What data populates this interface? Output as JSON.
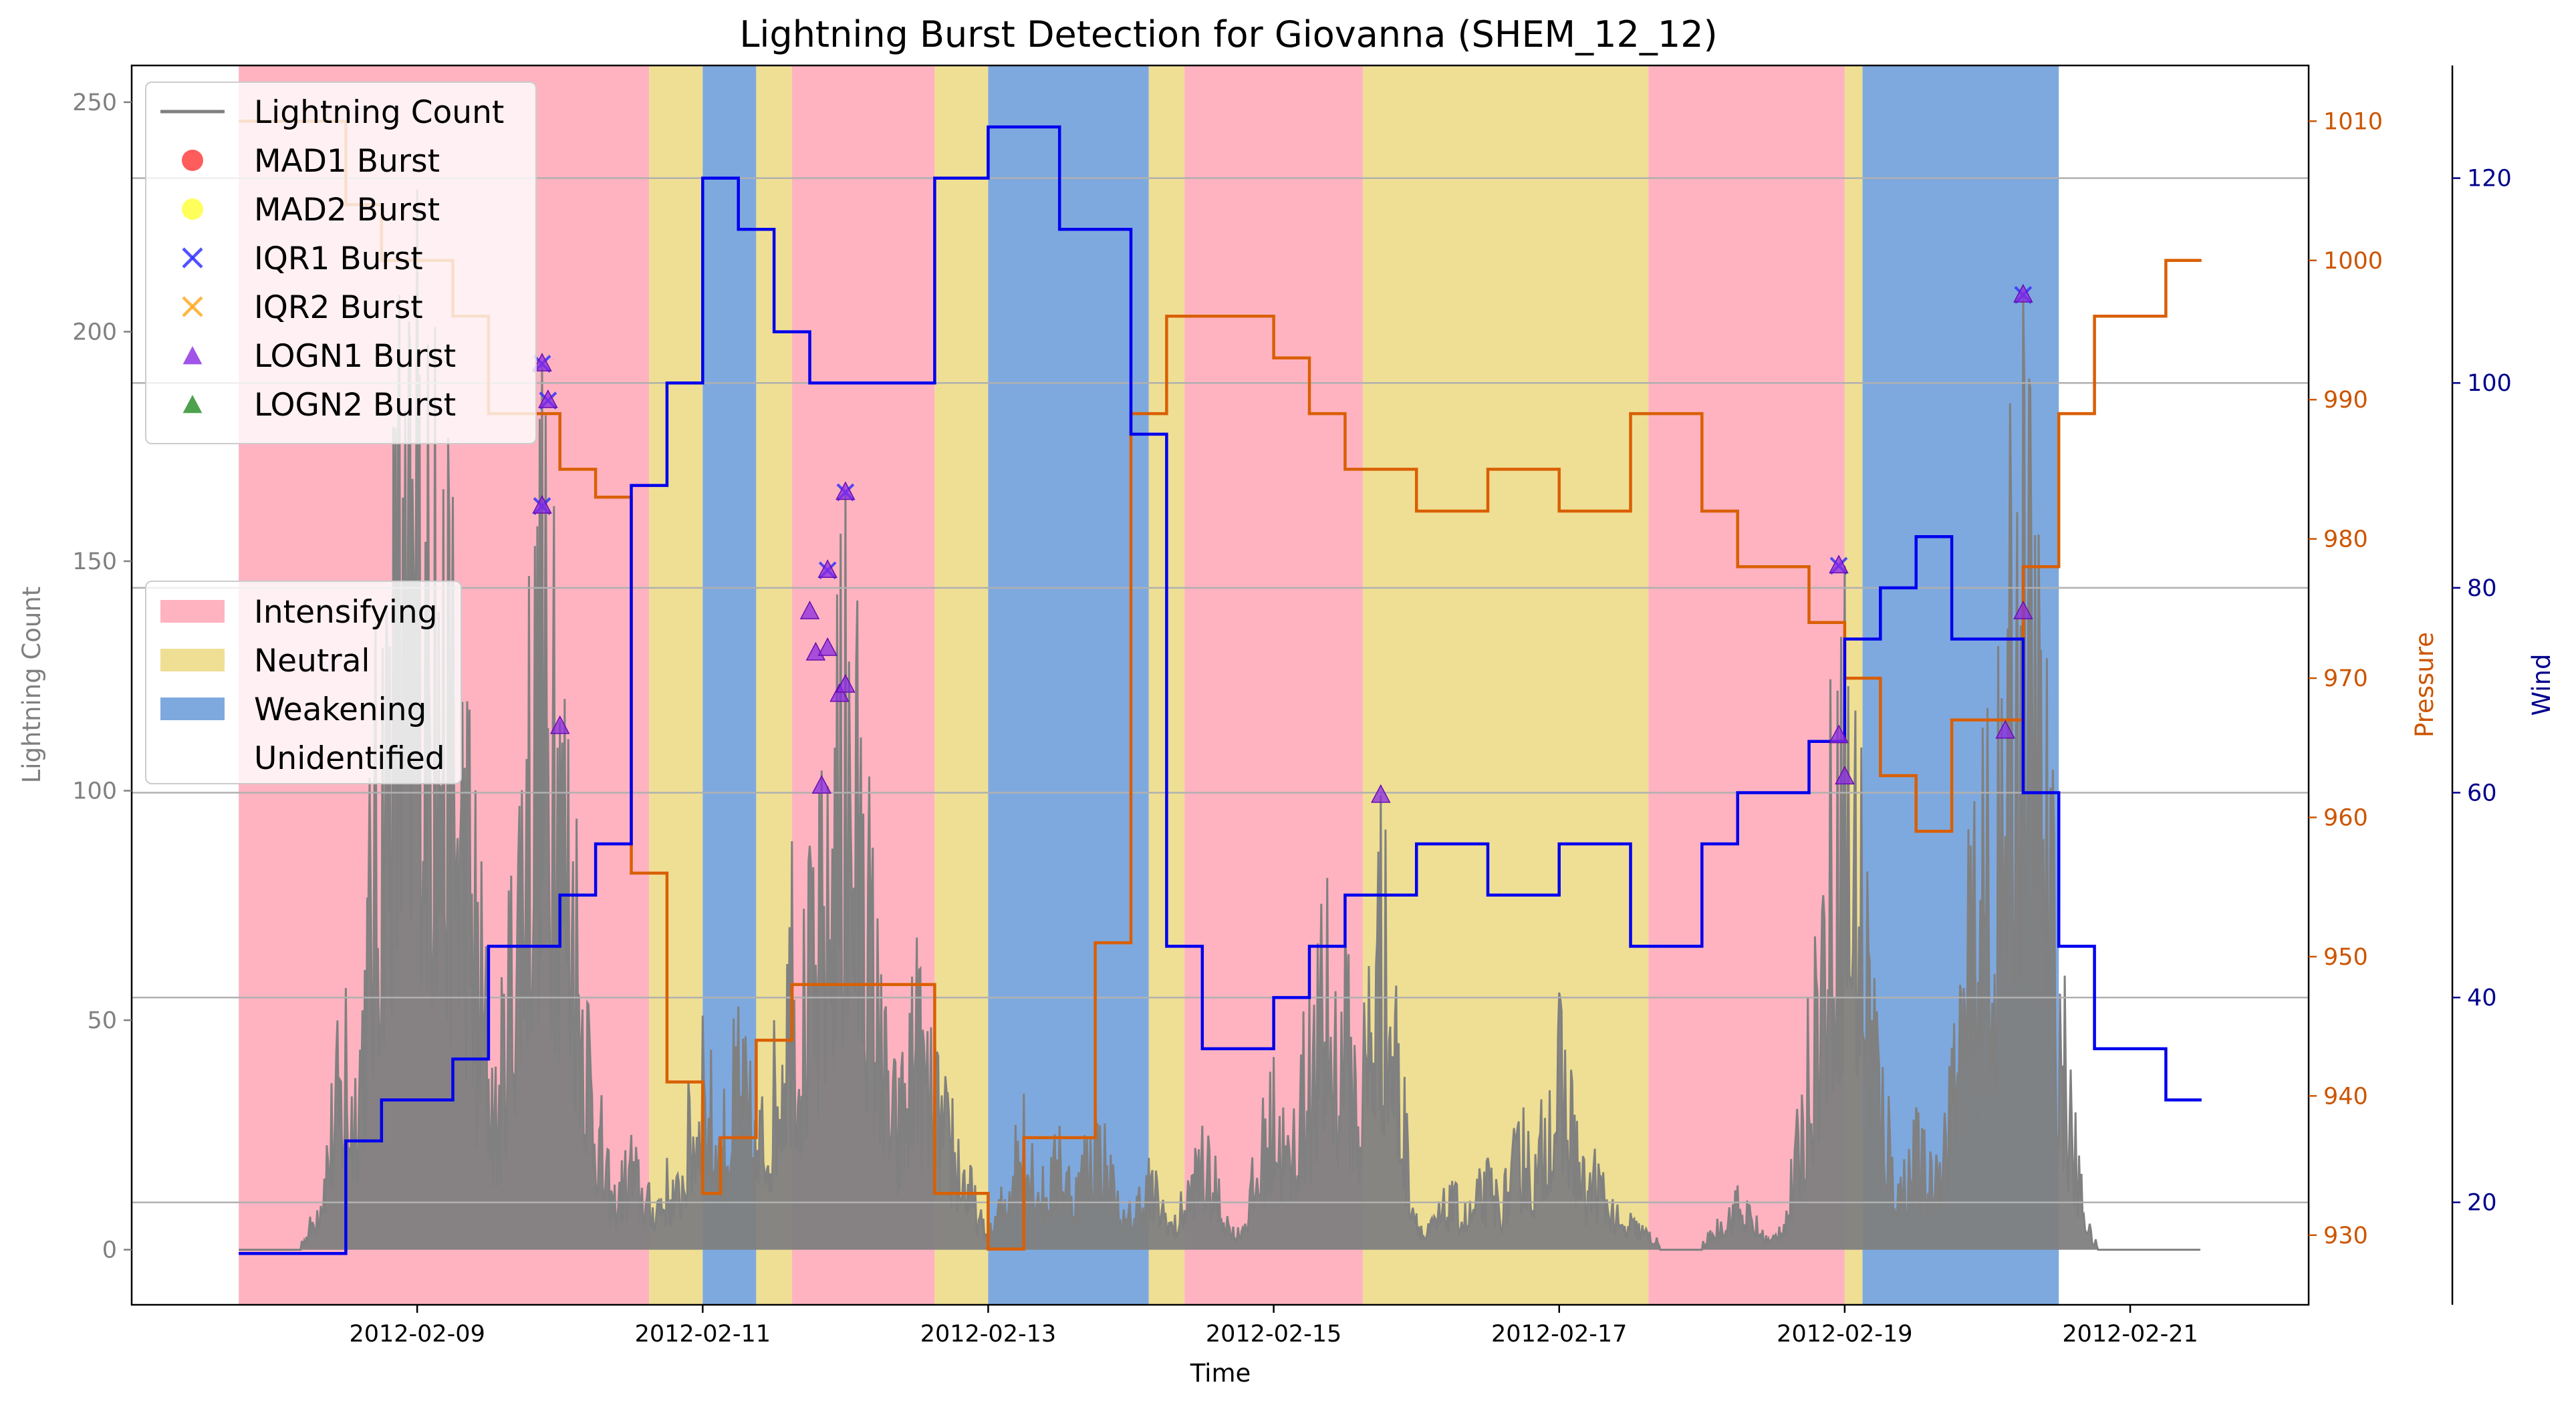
{
  "chart_data": {
    "type": "line",
    "title": "Lightning Burst Detection for Giovanna (SHEM_12_12)",
    "xlabel": "Time",
    "ylabel": "Lightning Count",
    "y2label": "Pressure",
    "y3label": "Wind",
    "x_range": [
      "2012-02-07 00:00",
      "2012-02-22 06:00"
    ],
    "ylim": [
      -12,
      258
    ],
    "y2lim": [
      925,
      1014
    ],
    "y3lim": [
      10,
      131
    ],
    "x_ticks": [
      "2012-02-09",
      "2012-02-11",
      "2012-02-13",
      "2012-02-15",
      "2012-02-17",
      "2012-02-19",
      "2012-02-21"
    ],
    "y_ticks": [
      0,
      50,
      100,
      150,
      200,
      250
    ],
    "y2_ticks": [
      930,
      940,
      950,
      960,
      970,
      980,
      990,
      1000,
      1010
    ],
    "y3_ticks": [
      20,
      40,
      60,
      80,
      100,
      120
    ],
    "colors": {
      "Intensifying": "#ffb3c1",
      "Neutral": "#efdf94",
      "Weakening": "#7ea9df",
      "lightning": "#808080",
      "pressure": "#d95f02",
      "wind": "#0000ee",
      "grid": "#b0b0b0",
      "pressure_axis": "#cc5500",
      "wind_axis": "#00008b"
    },
    "phases": [
      {
        "start": "2012-02-07 18:00",
        "end": "2012-02-10 15:00",
        "phase": "Intensifying"
      },
      {
        "start": "2012-02-10 15:00",
        "end": "2012-02-11 00:00",
        "phase": "Neutral"
      },
      {
        "start": "2012-02-11 00:00",
        "end": "2012-02-11 09:00",
        "phase": "Weakening"
      },
      {
        "start": "2012-02-11 09:00",
        "end": "2012-02-11 15:00",
        "phase": "Neutral"
      },
      {
        "start": "2012-02-11 15:00",
        "end": "2012-02-12 15:00",
        "phase": "Intensifying"
      },
      {
        "start": "2012-02-12 15:00",
        "end": "2012-02-13 00:00",
        "phase": "Neutral"
      },
      {
        "start": "2012-02-13 00:00",
        "end": "2012-02-14 03:00",
        "phase": "Weakening"
      },
      {
        "start": "2012-02-14 03:00",
        "end": "2012-02-14 09:00",
        "phase": "Neutral"
      },
      {
        "start": "2012-02-14 09:00",
        "end": "2012-02-15 15:00",
        "phase": "Intensifying"
      },
      {
        "start": "2012-02-15 15:00",
        "end": "2012-02-17 15:00",
        "phase": "Neutral"
      },
      {
        "start": "2012-02-17 15:00",
        "end": "2012-02-19 00:00",
        "phase": "Intensifying"
      },
      {
        "start": "2012-02-19 00:00",
        "end": "2012-02-19 03:00",
        "phase": "Neutral"
      },
      {
        "start": "2012-02-19 03:00",
        "end": "2012-02-20 12:00",
        "phase": "Weakening"
      }
    ],
    "pressure": [
      [
        "2012-02-07 18:00",
        1010
      ],
      [
        "2012-02-08 12:00",
        1004
      ],
      [
        "2012-02-08 18:00",
        1000
      ],
      [
        "2012-02-09 06:00",
        996
      ],
      [
        "2012-02-09 12:00",
        989
      ],
      [
        "2012-02-10 00:00",
        985
      ],
      [
        "2012-02-10 06:00",
        983
      ],
      [
        "2012-02-10 12:00",
        956
      ],
      [
        "2012-02-10 18:00",
        941
      ],
      [
        "2012-02-11 00:00",
        933
      ],
      [
        "2012-02-11 03:00",
        937
      ],
      [
        "2012-02-11 09:00",
        944
      ],
      [
        "2012-02-11 15:00",
        948
      ],
      [
        "2012-02-12 15:00",
        933
      ],
      [
        "2012-02-13 00:00",
        929
      ],
      [
        "2012-02-13 06:00",
        937
      ],
      [
        "2012-02-13 18:00",
        951
      ],
      [
        "2012-02-14 00:00",
        989
      ],
      [
        "2012-02-14 06:00",
        996
      ],
      [
        "2012-02-15 00:00",
        993
      ],
      [
        "2012-02-15 06:00",
        989
      ],
      [
        "2012-02-15 12:00",
        985
      ],
      [
        "2012-02-16 00:00",
        982
      ],
      [
        "2012-02-16 12:00",
        985
      ],
      [
        "2012-02-17 00:00",
        982
      ],
      [
        "2012-02-17 12:00",
        989
      ],
      [
        "2012-02-18 00:00",
        982
      ],
      [
        "2012-02-18 06:00",
        978
      ],
      [
        "2012-02-18 18:00",
        974
      ],
      [
        "2012-02-19 00:00",
        970
      ],
      [
        "2012-02-19 06:00",
        963
      ],
      [
        "2012-02-19 12:00",
        959
      ],
      [
        "2012-02-19 18:00",
        967
      ],
      [
        "2012-02-20 06:00",
        978
      ],
      [
        "2012-02-20 12:00",
        989
      ],
      [
        "2012-02-20 18:00",
        996
      ],
      [
        "2012-02-21 06:00",
        1000
      ],
      [
        "2012-02-21 12:00",
        1000
      ]
    ],
    "wind": [
      [
        "2012-02-07 18:00",
        15
      ],
      [
        "2012-02-08 12:00",
        26
      ],
      [
        "2012-02-08 18:00",
        30
      ],
      [
        "2012-02-09 06:00",
        34
      ],
      [
        "2012-02-09 12:00",
        45
      ],
      [
        "2012-02-10 00:00",
        50
      ],
      [
        "2012-02-10 06:00",
        55
      ],
      [
        "2012-02-10 12:00",
        90
      ],
      [
        "2012-02-10 18:00",
        100
      ],
      [
        "2012-02-11 00:00",
        120
      ],
      [
        "2012-02-11 06:00",
        115
      ],
      [
        "2012-02-11 12:00",
        105
      ],
      [
        "2012-02-11 18:00",
        100
      ],
      [
        "2012-02-12 15:00",
        120
      ],
      [
        "2012-02-13 00:00",
        125
      ],
      [
        "2012-02-13 12:00",
        115
      ],
      [
        "2012-02-14 00:00",
        95
      ],
      [
        "2012-02-14 06:00",
        45
      ],
      [
        "2012-02-14 12:00",
        35
      ],
      [
        "2012-02-15 00:00",
        40
      ],
      [
        "2012-02-15 06:00",
        45
      ],
      [
        "2012-02-15 12:00",
        50
      ],
      [
        "2012-02-16 00:00",
        55
      ],
      [
        "2012-02-16 12:00",
        50
      ],
      [
        "2012-02-17 00:00",
        55
      ],
      [
        "2012-02-17 12:00",
        45
      ],
      [
        "2012-02-18 00:00",
        55
      ],
      [
        "2012-02-18 06:00",
        60
      ],
      [
        "2012-02-18 18:00",
        65
      ],
      [
        "2012-02-19 00:00",
        75
      ],
      [
        "2012-02-19 06:00",
        80
      ],
      [
        "2012-02-19 12:00",
        85
      ],
      [
        "2012-02-19 18:00",
        75
      ],
      [
        "2012-02-20 06:00",
        60
      ],
      [
        "2012-02-20 12:00",
        45
      ],
      [
        "2012-02-20 18:00",
        35
      ],
      [
        "2012-02-21 06:00",
        30
      ],
      [
        "2012-02-21 12:00",
        30
      ]
    ],
    "lightning_peaks": [
      [
        "2012-02-08 12:00",
        57
      ],
      [
        "2012-02-08 18:00",
        55
      ],
      [
        "2012-02-08 21:00",
        208
      ],
      [
        "2012-02-09 00:00",
        231
      ],
      [
        "2012-02-09 03:00",
        201
      ],
      [
        "2012-02-09 06:00",
        164
      ],
      [
        "2012-02-09 10:00",
        22
      ],
      [
        "2012-02-09 18:00",
        50
      ],
      [
        "2012-02-09 21:00",
        193
      ],
      [
        "2012-02-09 23:00",
        162
      ],
      [
        "2012-02-10 00:00",
        115
      ],
      [
        "2012-02-10 06:00",
        15
      ],
      [
        "2012-02-10 12:00",
        25
      ],
      [
        "2012-02-10 18:00",
        20
      ],
      [
        "2012-02-10 21:00",
        12
      ],
      [
        "2012-02-11 00:00",
        51
      ],
      [
        "2012-02-11 06:00",
        53
      ],
      [
        "2012-02-11 12:00",
        50
      ],
      [
        "2012-02-11 15:00",
        89
      ],
      [
        "2012-02-11 18:00",
        88
      ],
      [
        "2012-02-11 21:00",
        101
      ],
      [
        "2012-02-12 00:00",
        165
      ],
      [
        "2012-02-12 03:00",
        95
      ],
      [
        "2012-02-12 06:00",
        60
      ],
      [
        "2012-02-12 12:00",
        68
      ],
      [
        "2012-02-12 15:00",
        48
      ],
      [
        "2012-02-12 18:00",
        33
      ],
      [
        "2012-02-13 06:00",
        34
      ],
      [
        "2012-02-13 12:00",
        27
      ],
      [
        "2012-02-13 18:00",
        35
      ],
      [
        "2012-02-14 03:00",
        20
      ],
      [
        "2012-02-14 12:00",
        27
      ],
      [
        "2012-02-15 00:00",
        42
      ],
      [
        "2012-02-15 06:00",
        56
      ],
      [
        "2012-02-15 09:00",
        81
      ],
      [
        "2012-02-15 12:00",
        68
      ],
      [
        "2012-02-15 18:00",
        99
      ],
      [
        "2012-02-16 06:00",
        15
      ],
      [
        "2012-02-16 12:00",
        20
      ],
      [
        "2012-02-16 18:00",
        31
      ],
      [
        "2012-02-17 00:00",
        56
      ],
      [
        "2012-02-17 06:00",
        22
      ],
      [
        "2012-02-17 12:00",
        8
      ],
      [
        "2012-02-18 06:00",
        14
      ],
      [
        "2012-02-18 18:00",
        29
      ],
      [
        "2012-02-19 00:00",
        149
      ],
      [
        "2012-02-19 06:00",
        6
      ],
      [
        "2012-02-19 12:00",
        31
      ],
      [
        "2012-02-19 18:00",
        44
      ],
      [
        "2012-02-20 00:00",
        118
      ],
      [
        "2012-02-20 06:00",
        208
      ],
      [
        "2012-02-20 12:00",
        22
      ],
      [
        "2012-02-20 18:00",
        1
      ]
    ],
    "bursts": [
      {
        "time": "2012-02-09 21:00",
        "value": 193,
        "type": "IQR1"
      },
      {
        "time": "2012-02-09 22:00",
        "value": 185,
        "type": "IQR1"
      },
      {
        "time": "2012-02-09 21:00",
        "value": 162,
        "type": "IQR1"
      },
      {
        "time": "2012-02-11 21:00",
        "value": 148,
        "type": "IQR1"
      },
      {
        "time": "2012-02-12 00:00",
        "value": 165,
        "type": "IQR1"
      },
      {
        "time": "2012-02-18 23:00",
        "value": 149,
        "type": "IQR1"
      },
      {
        "time": "2012-02-20 06:00",
        "value": 208,
        "type": "IQR1"
      },
      {
        "time": "2012-02-09 21:00",
        "value": 193,
        "type": "LOGN1"
      },
      {
        "time": "2012-02-09 22:00",
        "value": 185,
        "type": "LOGN1"
      },
      {
        "time": "2012-02-09 21:00",
        "value": 162,
        "type": "LOGN1"
      },
      {
        "time": "2012-02-10 00:00",
        "value": 114,
        "type": "LOGN1"
      },
      {
        "time": "2012-02-11 18:00",
        "value": 139,
        "type": "LOGN1"
      },
      {
        "time": "2012-02-11 19:00",
        "value": 130,
        "type": "LOGN1"
      },
      {
        "time": "2012-02-11 21:00",
        "value": 131,
        "type": "LOGN1"
      },
      {
        "time": "2012-02-11 21:00",
        "value": 148,
        "type": "LOGN1"
      },
      {
        "time": "2012-02-11 20:00",
        "value": 101,
        "type": "LOGN1"
      },
      {
        "time": "2012-02-11 23:00",
        "value": 121,
        "type": "LOGN1"
      },
      {
        "time": "2012-02-12 00:00",
        "value": 123,
        "type": "LOGN1"
      },
      {
        "time": "2012-02-12 00:00",
        "value": 165,
        "type": "LOGN1"
      },
      {
        "time": "2012-02-15 18:00",
        "value": 99,
        "type": "LOGN1"
      },
      {
        "time": "2012-02-18 23:00",
        "value": 149,
        "type": "LOGN1"
      },
      {
        "time": "2012-02-18 23:00",
        "value": 112,
        "type": "LOGN1"
      },
      {
        "time": "2012-02-19 00:00",
        "value": 103,
        "type": "LOGN1"
      },
      {
        "time": "2012-02-20 03:00",
        "value": 113,
        "type": "LOGN1"
      },
      {
        "time": "2012-02-20 06:00",
        "value": 208,
        "type": "LOGN1"
      },
      {
        "time": "2012-02-20 06:00",
        "value": 139,
        "type": "LOGN1"
      }
    ],
    "legend_series": [
      {
        "label": "Lightning Count",
        "marker": "line",
        "color": "#808080"
      },
      {
        "label": "MAD1 Burst",
        "marker": "circle",
        "color": "#ff3333"
      },
      {
        "label": "MAD2 Burst",
        "marker": "circle",
        "color": "#ffff33"
      },
      {
        "label": "IQR1 Burst",
        "marker": "x",
        "color": "#3333ff"
      },
      {
        "label": "IQR2 Burst",
        "marker": "x",
        "color": "#ffaa22"
      },
      {
        "label": "LOGN1 Burst",
        "marker": "triangle",
        "color": "#8a2be2"
      },
      {
        "label": "LOGN2 Burst",
        "marker": "triangle",
        "color": "#228b22"
      }
    ],
    "legend_phases": [
      {
        "label": "Intensifying",
        "color": "#ffb3c1"
      },
      {
        "label": "Neutral",
        "color": "#efdf94"
      },
      {
        "label": "Weakening",
        "color": "#7ea9df"
      },
      {
        "label": "Unidentified",
        "color": "#ffffff"
      }
    ]
  }
}
